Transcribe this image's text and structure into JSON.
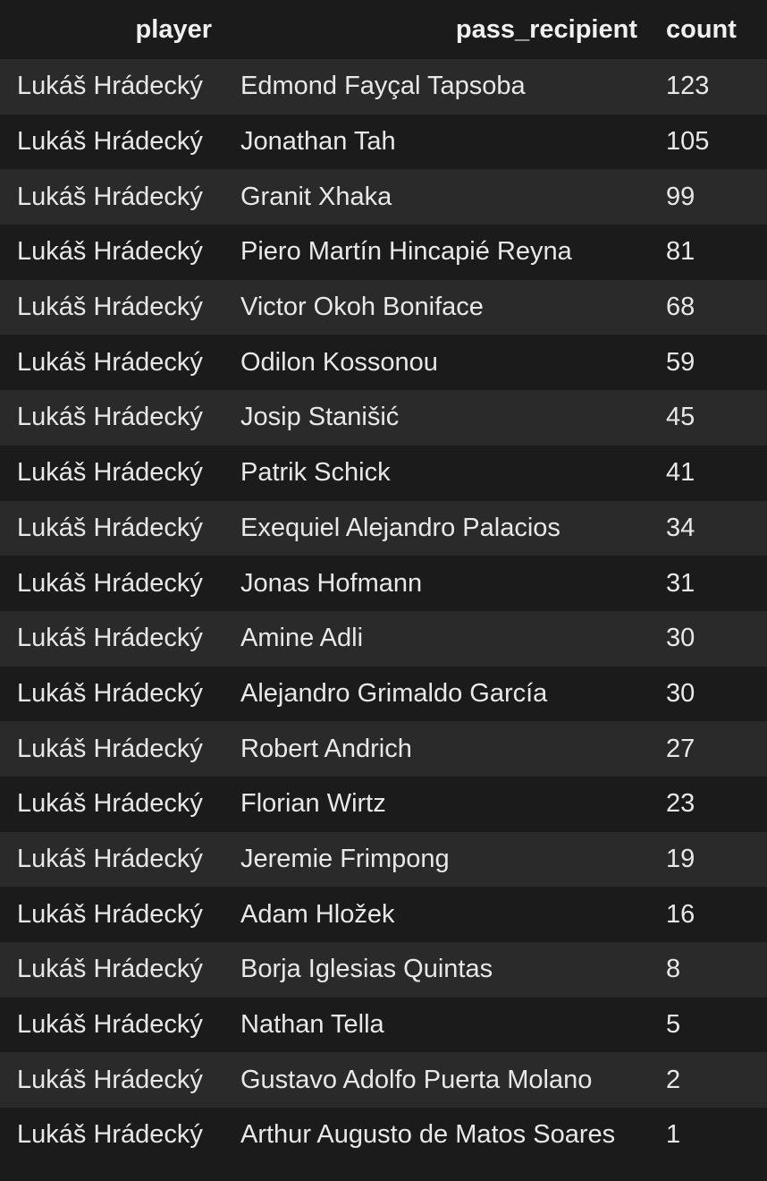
{
  "table": {
    "headers": [
      "player",
      "pass_recipient",
      "count"
    ],
    "rows": [
      [
        "Lukáš Hrádecký",
        "Edmond Fayçal Tapsoba",
        "123"
      ],
      [
        "Lukáš Hrádecký",
        "Jonathan Tah",
        "105"
      ],
      [
        "Lukáš Hrádecký",
        "Granit Xhaka",
        "99"
      ],
      [
        "Lukáš Hrádecký",
        "Piero Martín Hincapié Reyna",
        "81"
      ],
      [
        "Lukáš Hrádecký",
        "Victor Okoh Boniface",
        "68"
      ],
      [
        "Lukáš Hrádecký",
        "Odilon Kossonou",
        "59"
      ],
      [
        "Lukáš Hrádecký",
        "Josip Stanišić",
        "45"
      ],
      [
        "Lukáš Hrádecký",
        "Patrik Schick",
        "41"
      ],
      [
        "Lukáš Hrádecký",
        "Exequiel Alejandro Palacios",
        "34"
      ],
      [
        "Lukáš Hrádecký",
        "Jonas Hofmann",
        "31"
      ],
      [
        "Lukáš Hrádecký",
        "Amine Adli",
        "30"
      ],
      [
        "Lukáš Hrádecký",
        "Alejandro Grimaldo García",
        "30"
      ],
      [
        "Lukáš Hrádecký",
        "Robert Andrich",
        "27"
      ],
      [
        "Lukáš Hrádecký",
        "Florian Wirtz",
        "23"
      ],
      [
        "Lukáš Hrádecký",
        "Jeremie Frimpong",
        "19"
      ],
      [
        "Lukáš Hrádecký",
        "Adam Hložek",
        "16"
      ],
      [
        "Lukáš Hrádecký",
        "Borja Iglesias Quintas",
        "8"
      ],
      [
        "Lukáš Hrádecký",
        "Nathan Tella",
        "5"
      ],
      [
        "Lukáš Hrádecký",
        "Gustavo Adolfo Puerta Molano",
        "2"
      ],
      [
        "Lukáš Hrádecký",
        "Arthur Augusto de Matos Soares",
        "1"
      ]
    ]
  }
}
